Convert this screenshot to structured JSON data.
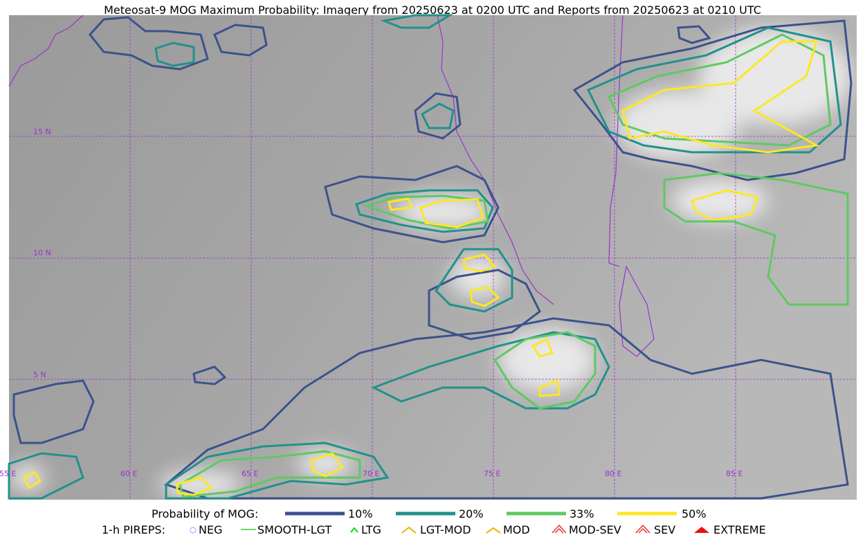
{
  "title": "Meteosat-9 MOG Maximum Probability: Imagery from 20250623 at 0200 UTC and Reports from 20250623 at 0210 UTC",
  "map": {
    "latitude_labels": [
      "15 N",
      "10 N",
      "5 N"
    ],
    "longitude_labels": [
      "55 E",
      "60 E",
      "65 E",
      "70 E",
      "75 E",
      "80 E",
      "85 E"
    ]
  },
  "legend": {
    "probability": {
      "label": "Probability of MOG:",
      "items": [
        "10%",
        "20%",
        "33%",
        "50%"
      ]
    },
    "pireps": {
      "label": "1-h PIREPS:",
      "items": [
        "NEG",
        "SMOOTH-LGT",
        "LTG",
        "LGT-MOD",
        "MOD",
        "MOD-SEV",
        "SEV",
        "EXTREME"
      ]
    }
  }
}
